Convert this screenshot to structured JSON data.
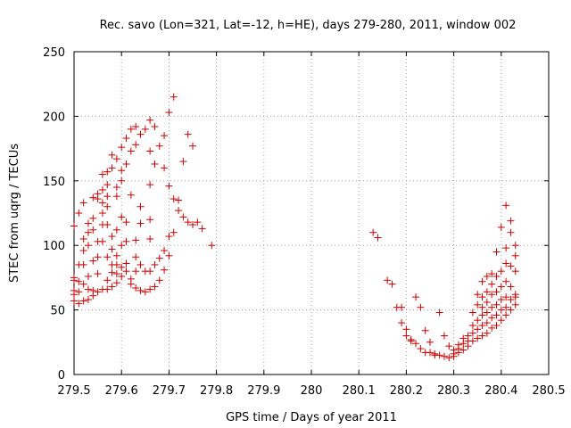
{
  "chart_data": {
    "type": "scatter",
    "title": "Rec. savo (Lon=321, Lat=-12, h=HE), days 279-280, 2011, window 002",
    "xlabel": "GPS time / Days of year 2011",
    "ylabel": "STEC from uqrg / TECUs",
    "xlim": [
      279.5,
      280.5
    ],
    "ylim": [
      0,
      250
    ],
    "xticks": [
      "279.5",
      "279.6",
      "279.7",
      "279.8",
      "279.9",
      "280",
      "280.1",
      "280.2",
      "280.3",
      "280.4",
      "280.5"
    ],
    "yticks": [
      "0",
      "50",
      "100",
      "150",
      "200",
      "250"
    ],
    "grid": true,
    "marker": "plus",
    "color": "#cc0000",
    "points": [
      [
        279.5,
        115
      ],
      [
        279.5,
        75
      ],
      [
        279.5,
        65
      ],
      [
        279.5,
        62
      ],
      [
        279.5,
        57
      ],
      [
        279.5,
        73
      ],
      [
        279.51,
        125
      ],
      [
        279.51,
        85
      ],
      [
        279.51,
        72
      ],
      [
        279.51,
        64
      ],
      [
        279.51,
        55
      ],
      [
        279.52,
        105
      ],
      [
        279.52,
        96
      ],
      [
        279.52,
        85
      ],
      [
        279.52,
        70
      ],
      [
        279.52,
        57
      ],
      [
        279.52,
        133
      ],
      [
        279.53,
        117
      ],
      [
        279.53,
        110
      ],
      [
        279.53,
        100
      ],
      [
        279.53,
        76
      ],
      [
        279.53,
        66
      ],
      [
        279.53,
        58
      ],
      [
        279.54,
        137
      ],
      [
        279.54,
        121
      ],
      [
        279.54,
        112
      ],
      [
        279.54,
        88
      ],
      [
        279.54,
        65
      ],
      [
        279.54,
        61
      ],
      [
        279.55,
        140
      ],
      [
        279.55,
        136
      ],
      [
        279.55,
        103
      ],
      [
        279.55,
        91
      ],
      [
        279.55,
        78
      ],
      [
        279.55,
        64
      ],
      [
        279.56,
        155
      ],
      [
        279.56,
        143
      ],
      [
        279.56,
        133
      ],
      [
        279.56,
        125
      ],
      [
        279.56,
        116
      ],
      [
        279.56,
        103
      ],
      [
        279.56,
        66
      ],
      [
        279.57,
        157
      ],
      [
        279.57,
        147
      ],
      [
        279.57,
        138
      ],
      [
        279.57,
        130
      ],
      [
        279.57,
        116
      ],
      [
        279.57,
        91
      ],
      [
        279.57,
        73
      ],
      [
        279.57,
        66
      ],
      [
        279.58,
        170
      ],
      [
        279.58,
        160
      ],
      [
        279.58,
        107
      ],
      [
        279.58,
        97
      ],
      [
        279.58,
        85
      ],
      [
        279.58,
        79
      ],
      [
        279.58,
        68
      ],
      [
        279.59,
        167
      ],
      [
        279.59,
        145
      ],
      [
        279.59,
        138
      ],
      [
        279.59,
        112
      ],
      [
        279.59,
        92
      ],
      [
        279.59,
        85
      ],
      [
        279.59,
        78
      ],
      [
        279.59,
        71
      ],
      [
        279.6,
        176
      ],
      [
        279.6,
        158
      ],
      [
        279.6,
        150
      ],
      [
        279.6,
        122
      ],
      [
        279.6,
        100
      ],
      [
        279.6,
        83
      ],
      [
        279.6,
        76
      ],
      [
        279.61,
        183
      ],
      [
        279.61,
        163
      ],
      [
        279.61,
        118
      ],
      [
        279.61,
        103
      ],
      [
        279.61,
        86
      ],
      [
        279.61,
        80
      ],
      [
        279.62,
        190
      ],
      [
        279.62,
        173
      ],
      [
        279.62,
        139
      ],
      [
        279.62,
        74
      ],
      [
        279.62,
        70
      ],
      [
        279.63,
        192
      ],
      [
        279.63,
        178
      ],
      [
        279.63,
        104
      ],
      [
        279.63,
        91
      ],
      [
        279.63,
        80
      ],
      [
        279.63,
        67
      ],
      [
        279.64,
        186
      ],
      [
        279.64,
        130
      ],
      [
        279.64,
        117
      ],
      [
        279.64,
        85
      ],
      [
        279.64,
        65
      ],
      [
        279.65,
        190
      ],
      [
        279.65,
        80
      ],
      [
        279.65,
        64
      ],
      [
        279.66,
        197
      ],
      [
        279.66,
        173
      ],
      [
        279.66,
        147
      ],
      [
        279.66,
        120
      ],
      [
        279.66,
        105
      ],
      [
        279.66,
        80
      ],
      [
        279.66,
        66
      ],
      [
        279.67,
        192
      ],
      [
        279.67,
        163
      ],
      [
        279.67,
        85
      ],
      [
        279.67,
        68
      ],
      [
        279.68,
        177
      ],
      [
        279.68,
        90
      ],
      [
        279.68,
        73
      ],
      [
        279.69,
        185
      ],
      [
        279.69,
        160
      ],
      [
        279.69,
        96
      ],
      [
        279.69,
        81
      ],
      [
        279.7,
        203
      ],
      [
        279.7,
        146
      ],
      [
        279.7,
        107
      ],
      [
        279.7,
        92
      ],
      [
        279.71,
        215
      ],
      [
        279.71,
        136
      ],
      [
        279.71,
        110
      ],
      [
        279.72,
        127
      ],
      [
        279.72,
        135
      ],
      [
        279.73,
        165
      ],
      [
        279.73,
        122
      ],
      [
        279.74,
        186
      ],
      [
        279.74,
        118
      ],
      [
        279.75,
        177
      ],
      [
        279.75,
        116
      ],
      [
        279.76,
        118
      ],
      [
        279.77,
        113
      ],
      [
        279.79,
        100
      ],
      [
        280.13,
        110
      ],
      [
        280.14,
        106
      ],
      [
        280.16,
        73
      ],
      [
        280.17,
        70
      ],
      [
        280.18,
        52
      ],
      [
        280.19,
        52
      ],
      [
        280.19,
        40
      ],
      [
        280.2,
        35
      ],
      [
        280.2,
        30
      ],
      [
        280.21,
        27
      ],
      [
        280.21,
        26
      ],
      [
        280.22,
        24
      ],
      [
        280.22,
        60
      ],
      [
        280.23,
        20
      ],
      [
        280.23,
        52
      ],
      [
        280.24,
        17
      ],
      [
        280.24,
        34
      ],
      [
        280.25,
        17
      ],
      [
        280.25,
        25
      ],
      [
        280.26,
        16
      ],
      [
        280.26,
        15
      ],
      [
        280.27,
        15
      ],
      [
        280.27,
        48
      ],
      [
        280.28,
        14
      ],
      [
        280.28,
        30
      ],
      [
        280.29,
        13
      ],
      [
        280.29,
        22
      ],
      [
        280.3,
        14
      ],
      [
        280.3,
        16
      ],
      [
        280.3,
        19
      ],
      [
        280.31,
        17
      ],
      [
        280.31,
        20
      ],
      [
        280.31,
        23
      ],
      [
        280.32,
        19
      ],
      [
        280.32,
        24
      ],
      [
        280.32,
        28
      ],
      [
        280.33,
        22
      ],
      [
        280.33,
        26
      ],
      [
        280.33,
        30
      ],
      [
        280.34,
        26
      ],
      [
        280.34,
        32
      ],
      [
        280.34,
        38
      ],
      [
        280.34,
        48
      ],
      [
        280.35,
        28
      ],
      [
        280.35,
        35
      ],
      [
        280.35,
        42
      ],
      [
        280.35,
        54
      ],
      [
        280.35,
        62
      ],
      [
        280.36,
        30
      ],
      [
        280.36,
        38
      ],
      [
        280.36,
        46
      ],
      [
        280.36,
        52
      ],
      [
        280.36,
        60
      ],
      [
        280.36,
        72
      ],
      [
        280.37,
        32
      ],
      [
        280.37,
        40
      ],
      [
        280.37,
        48
      ],
      [
        280.37,
        56
      ],
      [
        280.37,
        64
      ],
      [
        280.37,
        76
      ],
      [
        280.38,
        36
      ],
      [
        280.38,
        44
      ],
      [
        280.38,
        52
      ],
      [
        280.38,
        62
      ],
      [
        280.38,
        70
      ],
      [
        280.38,
        78
      ],
      [
        280.39,
        38
      ],
      [
        280.39,
        46
      ],
      [
        280.39,
        54
      ],
      [
        280.39,
        64
      ],
      [
        280.39,
        76
      ],
      [
        280.39,
        95
      ],
      [
        280.4,
        42
      ],
      [
        280.4,
        50
      ],
      [
        280.4,
        58
      ],
      [
        280.4,
        68
      ],
      [
        280.4,
        80
      ],
      [
        280.4,
        114
      ],
      [
        280.41,
        46
      ],
      [
        280.41,
        52
      ],
      [
        280.41,
        60
      ],
      [
        280.41,
        72
      ],
      [
        280.41,
        86
      ],
      [
        280.41,
        98
      ],
      [
        280.41,
        131
      ],
      [
        280.42,
        50
      ],
      [
        280.42,
        58
      ],
      [
        280.42,
        68
      ],
      [
        280.42,
        84
      ],
      [
        280.42,
        110
      ],
      [
        280.42,
        119
      ],
      [
        280.43,
        54
      ],
      [
        280.43,
        60
      ],
      [
        280.43,
        62
      ],
      [
        280.43,
        80
      ],
      [
        280.43,
        92
      ],
      [
        280.43,
        100
      ]
    ]
  }
}
